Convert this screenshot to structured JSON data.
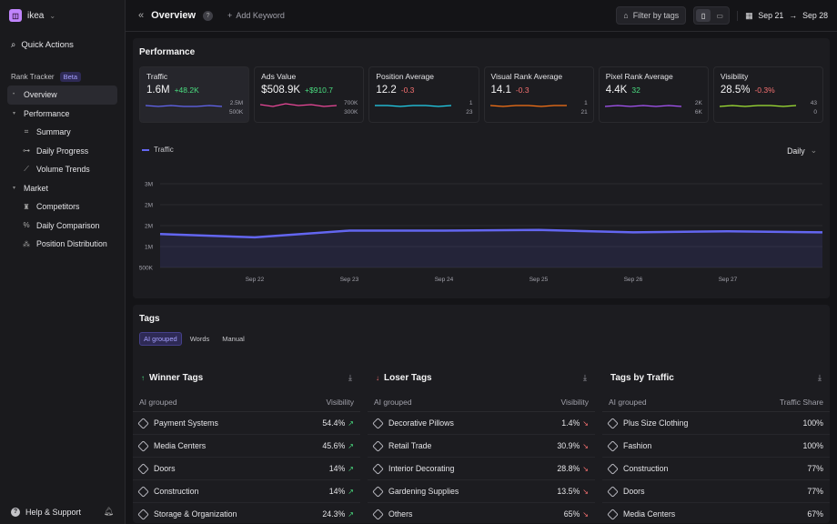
{
  "workspace": {
    "name": "ikea",
    "logo_color": "#c084fc"
  },
  "sidebar": {
    "quick_actions": "Quick Actions",
    "section": "Rank Tracker",
    "badge": "Beta",
    "items": [
      {
        "label": "Overview",
        "icon": "dot-icon"
      },
      {
        "label": "Performance",
        "icon": "caret-down-icon"
      },
      {
        "label": "Summary",
        "icon": "grid-icon"
      },
      {
        "label": "Daily Progress",
        "icon": "progress-icon"
      },
      {
        "label": "Volume Trends",
        "icon": "trend-icon"
      },
      {
        "label": "Market",
        "icon": "caret-down-icon"
      },
      {
        "label": "Competitors",
        "icon": "trophy-icon"
      },
      {
        "label": "Daily Comparison",
        "icon": "percent-icon"
      },
      {
        "label": "Position Distribution",
        "icon": "nodes-icon"
      }
    ],
    "help": "Help & Support"
  },
  "topbar": {
    "title": "Overview",
    "add_keyword": "Add Keyword",
    "filter": "Filter by tags",
    "date_from": "Sep 21",
    "date_to": "Sep 28"
  },
  "performance": {
    "title": "Performance",
    "metrics": [
      {
        "label": "Traffic",
        "value": "1.6M",
        "delta": "+48.2K",
        "dir": "up",
        "ax_top": "2.5M",
        "ax_bot": "500K",
        "color": "#6366f1"
      },
      {
        "label": "Ads Value",
        "value": "$508.9K",
        "delta": "+$910.7",
        "dir": "up",
        "ax_top": "700K",
        "ax_bot": "300K",
        "color": "#ec4899"
      },
      {
        "label": "Position Average",
        "value": "12.2",
        "delta": "-0.3",
        "dir": "down",
        "ax_top": "1",
        "ax_bot": "23",
        "color": "#22d3ee"
      },
      {
        "label": "Visual Rank Average",
        "value": "14.1",
        "delta": "-0.3",
        "dir": "down",
        "ax_top": "1",
        "ax_bot": "21",
        "color": "#f97316"
      },
      {
        "label": "Pixel Rank Average",
        "value": "4.4K",
        "delta": "32",
        "dir": "up",
        "ax_top": "2K",
        "ax_bot": "6K",
        "color": "#a855f7"
      },
      {
        "label": "Visibility",
        "value": "28.5%",
        "delta": "-0.3%",
        "dir": "down",
        "ax_top": "43",
        "ax_bot": "0",
        "color": "#a3e635"
      }
    ],
    "legend": "Traffic",
    "granularity": "Daily"
  },
  "chart_data": {
    "type": "area",
    "x": [
      "Sep 21",
      "Sep 22",
      "Sep 23",
      "Sep 24",
      "Sep 25",
      "Sep 26",
      "Sep 27",
      "Sep 28"
    ],
    "series": [
      {
        "name": "Traffic",
        "values": [
          1.5,
          1.4,
          1.6,
          1.6,
          1.62,
          1.55,
          1.58,
          1.55
        ]
      }
    ],
    "yticks": [
      "3M",
      "2M",
      "2M",
      "1M",
      "500K"
    ],
    "xticks": [
      "Sep 22",
      "Sep 23",
      "Sep 24",
      "Sep 25",
      "Sep 26",
      "Sep 27"
    ],
    "ylim": [
      0.5,
      3
    ],
    "color": "#6366f1"
  },
  "tags": {
    "title": "Tags",
    "tabs": [
      "AI grouped",
      "Words",
      "Manual"
    ],
    "columns": [
      {
        "title": "Winner Tags",
        "arrow": "↑",
        "arrow_class": "arr-up",
        "col1": "AI grouped",
        "col2": "Visibility",
        "rows": [
          {
            "name": "Payment Systems",
            "val": "54.4%",
            "tr": "↗"
          },
          {
            "name": "Media Centers",
            "val": "45.6%",
            "tr": "↗"
          },
          {
            "name": "Doors",
            "val": "14%",
            "tr": "↗"
          },
          {
            "name": "Construction",
            "val": "14%",
            "tr": "↗"
          },
          {
            "name": "Storage & Organization",
            "val": "24.3%",
            "tr": "↗"
          }
        ]
      },
      {
        "title": "Loser Tags",
        "arrow": "↓",
        "arrow_class": "arr-dn",
        "col1": "AI grouped",
        "col2": "Visibility",
        "rows": [
          {
            "name": "Decorative Pillows",
            "val": "1.4%",
            "tr": "↘"
          },
          {
            "name": "Retail Trade",
            "val": "30.9%",
            "tr": "↘"
          },
          {
            "name": "Interior Decorating",
            "val": "28.8%",
            "tr": "↘"
          },
          {
            "name": "Gardening Supplies",
            "val": "13.5%",
            "tr": "↘"
          },
          {
            "name": "Others",
            "val": "65%",
            "tr": "↘"
          }
        ]
      },
      {
        "title": "Tags by Traffic",
        "arrow": "",
        "arrow_class": "",
        "col1": "AI grouped",
        "col2": "Traffic Share",
        "rows": [
          {
            "name": "Plus Size Clothing",
            "val": "100%",
            "tr": ""
          },
          {
            "name": "Fashion",
            "val": "100%",
            "tr": ""
          },
          {
            "name": "Construction",
            "val": "77%",
            "tr": ""
          },
          {
            "name": "Doors",
            "val": "77%",
            "tr": ""
          },
          {
            "name": "Media Centers",
            "val": "67%",
            "tr": ""
          }
        ]
      }
    ]
  }
}
